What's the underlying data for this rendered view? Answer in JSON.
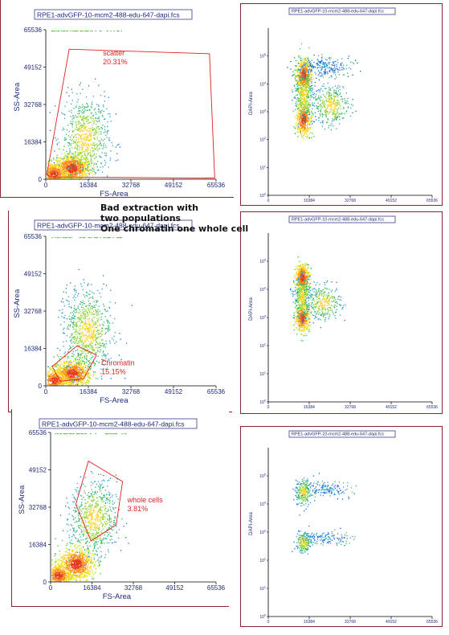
{
  "annotation": {
    "line1": "Bad extraction with",
    "line2": "two populations",
    "line3": "One chromatin one whole cell"
  },
  "chart_data": [
    {
      "type": "scatter",
      "id": "left-1",
      "title": "RPE1-advGFP-10-mcm2-488-edu-647-dapi.fcs",
      "xlabel": "FS-Area",
      "ylabel": "SS-Area",
      "xlim": [
        0,
        65536
      ],
      "ylim": [
        0,
        65536
      ],
      "xticks": [
        "0",
        "16384",
        "32768",
        "49152",
        "65536"
      ],
      "yticks": [
        "0",
        "16384",
        "32768",
        "49152",
        "65536"
      ],
      "gate": {
        "name": "scatter",
        "percent": "20.31%",
        "polygon": [
          [
            400,
            2000
          ],
          [
            9000,
            57000
          ],
          [
            63000,
            55000
          ],
          [
            65000,
            500
          ],
          [
            2000,
            1000
          ]
        ]
      },
      "populations": [
        {
          "x": 10000,
          "y": 5000,
          "sx": 3500,
          "sy": 3000,
          "n": 900,
          "density": "high"
        },
        {
          "x": 15000,
          "y": 18000,
          "sx": 4500,
          "sy": 9000,
          "n": 700,
          "density": "mid"
        },
        {
          "x": 3000,
          "y": 2500,
          "sx": 2500,
          "sy": 2500,
          "n": 500,
          "density": "high"
        }
      ]
    },
    {
      "type": "scatter",
      "id": "right-1",
      "title": "RPE1-advGFP-10-mcm2-488-edu-647-dapi.fcs",
      "xlabel": "",
      "ylabel": "DAPI-Area",
      "xlim": [
        0,
        65536
      ],
      "ylog": [
        1,
        5
      ],
      "xticks": [
        "0",
        "16384",
        "32768",
        "49152",
        "65536"
      ],
      "yticks_exp": [
        0,
        1,
        2,
        3,
        4,
        5
      ],
      "populations": [
        {
          "x": 14000,
          "y": 3.6,
          "sx": 1500,
          "sy": 0.25,
          "n": 500,
          "density": "high"
        },
        {
          "x": 14000,
          "y": 2.3,
          "sx": 1500,
          "sy": 0.25,
          "n": 450,
          "density": "high"
        },
        {
          "x": 14000,
          "y": 3.0,
          "sx": 1800,
          "sy": 0.4,
          "n": 350,
          "density": "mid"
        },
        {
          "x": 25000,
          "y": 2.7,
          "sx": 3500,
          "sy": 0.3,
          "n": 350,
          "density": "mid"
        },
        {
          "x": 22000,
          "y": 3.85,
          "sx": 5000,
          "sy": 0.15,
          "n": 250,
          "density": "low"
        }
      ]
    },
    {
      "type": "scatter",
      "id": "left-2",
      "title": "RPE1-advGFP-10-mcm2-488-edu-647-dapi.fcs",
      "xlabel": "FS-Area",
      "ylabel": "SS-Area",
      "xlim": [
        0,
        65536
      ],
      "ylim": [
        0,
        65536
      ],
      "xticks": [
        "0",
        "16384",
        "32768",
        "49152",
        "65536"
      ],
      "yticks": [
        "0",
        "16384",
        "32768",
        "49152",
        "65536"
      ],
      "gate": {
        "name": "Chromatin",
        "percent": "15.15%",
        "polygon": [
          [
            2500,
            8500
          ],
          [
            12000,
            17500
          ],
          [
            19500,
            13500
          ],
          [
            14500,
            3000
          ],
          [
            5500,
            2000
          ]
        ]
      },
      "populations": [
        {
          "x": 10000,
          "y": 5500,
          "sx": 3500,
          "sy": 3000,
          "n": 900,
          "density": "high"
        },
        {
          "x": 16000,
          "y": 24000,
          "sx": 4500,
          "sy": 9000,
          "n": 800,
          "density": "mid"
        },
        {
          "x": 3000,
          "y": 2500,
          "sx": 2500,
          "sy": 2500,
          "n": 500,
          "density": "high"
        }
      ]
    },
    {
      "type": "scatter",
      "id": "right-2",
      "title": "RPE1-advGFP-10-mcm2-488-edu-647-dapi.fcs",
      "xlabel": "",
      "ylabel": "DAPI-Area",
      "xlim": [
        0,
        65536
      ],
      "ylog": [
        1,
        5
      ],
      "xticks": [
        "0",
        "16384",
        "32768",
        "49152",
        "65536"
      ],
      "yticks_exp": [
        0,
        1,
        2,
        3,
        4,
        5
      ],
      "populations": [
        {
          "x": 13500,
          "y": 3.7,
          "sx": 1400,
          "sy": 0.2,
          "n": 500,
          "density": "high"
        },
        {
          "x": 13500,
          "y": 2.5,
          "sx": 1400,
          "sy": 0.2,
          "n": 450,
          "density": "high"
        },
        {
          "x": 13500,
          "y": 3.1,
          "sx": 1600,
          "sy": 0.3,
          "n": 350,
          "density": "mid"
        },
        {
          "x": 22000,
          "y": 2.95,
          "sx": 3500,
          "sy": 0.25,
          "n": 300,
          "density": "mid"
        }
      ]
    },
    {
      "type": "scatter",
      "id": "left-3",
      "title": "RPE1-advGFP-10-mcm2-488-edu-647-dapi.fcs",
      "xlabel": "FS-Area",
      "ylabel": "SS-Area",
      "xlim": [
        0,
        65536
      ],
      "ylim": [
        0,
        65536
      ],
      "xticks": [
        "0",
        "16384",
        "32768",
        "49152",
        "65536"
      ],
      "yticks": [
        "0",
        "16384",
        "32768",
        "49152",
        "65536"
      ],
      "gate": {
        "name": "whole cells",
        "percent": "3.81%",
        "polygon": [
          [
            10000,
            34000
          ],
          [
            15000,
            53000
          ],
          [
            28500,
            44000
          ],
          [
            26000,
            25000
          ],
          [
            16000,
            18000
          ]
        ]
      },
      "populations": [
        {
          "x": 10000,
          "y": 8000,
          "sx": 3500,
          "sy": 3500,
          "n": 900,
          "density": "high"
        },
        {
          "x": 17000,
          "y": 28000,
          "sx": 4500,
          "sy": 8000,
          "n": 700,
          "density": "mid"
        },
        {
          "x": 3000,
          "y": 3000,
          "sx": 2500,
          "sy": 2500,
          "n": 500,
          "density": "high"
        }
      ]
    },
    {
      "type": "scatter",
      "id": "right-3",
      "title": "RPE1-advGFP-10-mcm2-488-edu-647-dapi.fcs",
      "xlabel": "",
      "ylabel": "DAPI-Area",
      "xlim": [
        0,
        65536
      ],
      "ylog": [
        1,
        5
      ],
      "xticks": [
        "0",
        "16384",
        "32768",
        "49152",
        "65536"
      ],
      "yticks_exp": [
        0,
        1,
        2,
        3,
        4,
        5
      ],
      "populations": [
        {
          "x": 14000,
          "y": 3.7,
          "sx": 1500,
          "sy": 0.2,
          "n": 220,
          "density": "mid"
        },
        {
          "x": 14000,
          "y": 2.2,
          "sx": 1500,
          "sy": 0.15,
          "n": 200,
          "density": "mid"
        },
        {
          "x": 23000,
          "y": 3.8,
          "sx": 5000,
          "sy": 0.12,
          "n": 150,
          "density": "low"
        },
        {
          "x": 23000,
          "y": 2.35,
          "sx": 5000,
          "sy": 0.1,
          "n": 130,
          "density": "low"
        }
      ]
    }
  ]
}
